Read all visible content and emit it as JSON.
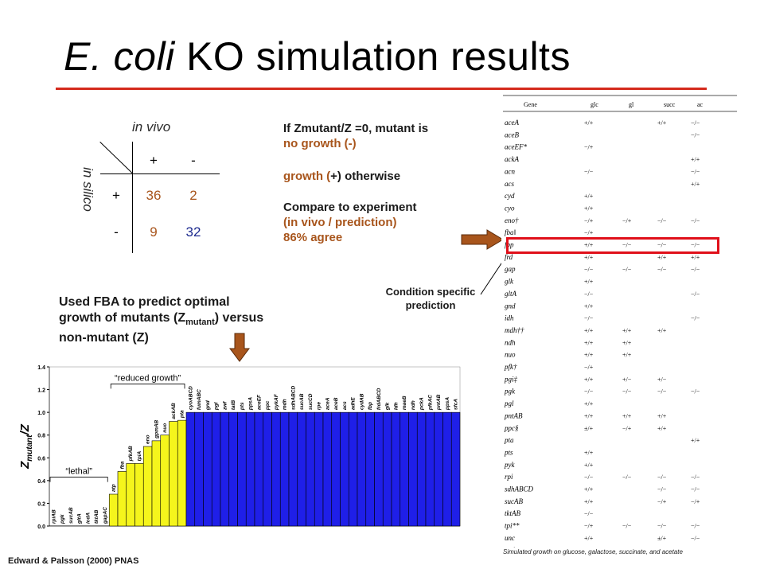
{
  "slide": {
    "title_italic": "E. coli",
    "title_rest": " KO simulation results",
    "citation": "Edward & Palsson (2000) PNAS"
  },
  "matrix": {
    "col_header": "in vivo",
    "row_header": "in silico",
    "col_labels": [
      "+",
      "-"
    ],
    "row_labels": [
      "+",
      "-"
    ],
    "cells": [
      [
        "36",
        "2"
      ],
      [
        "9",
        "32"
      ]
    ]
  },
  "rules": {
    "line1": "If Zmutant/Z =0, mutant is",
    "line2": "no growth (-)",
    "line3_a": "growth (",
    "line3_b": "+",
    "line3_c": ") otherwise",
    "compare_1": "Compare to experiment",
    "compare_2": "(in vivo / prediction)",
    "compare_3": "86% agree"
  },
  "fba": {
    "line1": "Used FBA to predict optimal",
    "line2_a": "growth of mutants (Z",
    "line2_sub": "mutant",
    "line2_b": ") versus",
    "line3": "non-mutant (Z)"
  },
  "condition": {
    "line1": "Condition specific",
    "line2": "prediction"
  },
  "gene_table": {
    "headers": [
      "Gene",
      "glc",
      "gl",
      "succ",
      "ac"
    ],
    "caption": "Simulated growth on glucose, galactose, succinate, and acetate",
    "rows": [
      {
        "gene": "aceA",
        "v": [
          "+/+",
          "",
          "+/+",
          "−/−"
        ]
      },
      {
        "gene": "aceB",
        "v": [
          "",
          "",
          "",
          "−/−"
        ]
      },
      {
        "gene": "aceEF*",
        "v": [
          "−/+",
          "",
          "",
          ""
        ]
      },
      {
        "gene": "ackA",
        "v": [
          "",
          "",
          "",
          "+/+"
        ]
      },
      {
        "gene": "acn",
        "v": [
          "−/−",
          "",
          "",
          "−/−"
        ]
      },
      {
        "gene": "acs",
        "v": [
          "",
          "",
          "",
          "+/+"
        ]
      },
      {
        "gene": "cyd",
        "v": [
          "+/+",
          "",
          "",
          ""
        ]
      },
      {
        "gene": "cyo",
        "v": [
          "+/+",
          "",
          "",
          ""
        ]
      },
      {
        "gene": "eno†",
        "v": [
          "−/+",
          "−/+",
          "−/−",
          "−/−"
        ]
      },
      {
        "gene": "fba‖",
        "v": [
          "−/+",
          "",
          "",
          ""
        ]
      },
      {
        "gene": "fbp",
        "v": [
          "+/+",
          "−/−",
          "−/−",
          "−/−"
        ]
      },
      {
        "gene": "frd",
        "v": [
          "+/+",
          "",
          "+/+",
          "+/+"
        ]
      },
      {
        "gene": "gap",
        "v": [
          "−/−",
          "−/−",
          "−/−",
          "−/−"
        ]
      },
      {
        "gene": "glk",
        "v": [
          "+/+",
          "",
          "",
          ""
        ]
      },
      {
        "gene": "gltA",
        "v": [
          "−/−",
          "",
          "",
          "−/−"
        ]
      },
      {
        "gene": "gnd",
        "v": [
          "+/+",
          "",
          "",
          ""
        ]
      },
      {
        "gene": "idh",
        "v": [
          "−/−",
          "",
          "",
          "−/−"
        ]
      },
      {
        "gene": "mdh††",
        "v": [
          "+/+",
          "+/+",
          "+/+",
          ""
        ]
      },
      {
        "gene": "ndh",
        "v": [
          "+/+",
          "+/+",
          "",
          ""
        ]
      },
      {
        "gene": "nuo",
        "v": [
          "+/+",
          "+/+",
          "",
          ""
        ]
      },
      {
        "gene": "pfk†",
        "v": [
          "−/+",
          "",
          "",
          ""
        ]
      },
      {
        "gene": "pgi‡",
        "v": [
          "+/+",
          "+/−",
          "+/−",
          ""
        ]
      },
      {
        "gene": "pgk",
        "v": [
          "−/−",
          "−/−",
          "−/−",
          "−/−"
        ]
      },
      {
        "gene": "pgl",
        "v": [
          "+/+",
          "",
          "",
          ""
        ]
      },
      {
        "gene": "pntAB",
        "v": [
          "+/+",
          "+/+",
          "+/+",
          ""
        ]
      },
      {
        "gene": "ppc§",
        "v": [
          "±/+",
          "−/+",
          "+/+",
          ""
        ]
      },
      {
        "gene": "pta",
        "v": [
          "",
          "",
          "",
          "+/+"
        ]
      },
      {
        "gene": "pts",
        "v": [
          "+/+",
          "",
          "",
          ""
        ]
      },
      {
        "gene": "pyk",
        "v": [
          "+/+",
          "",
          "",
          ""
        ]
      },
      {
        "gene": "rpi",
        "v": [
          "−/−",
          "−/−",
          "−/−",
          "−/−"
        ]
      },
      {
        "gene": "sdhABCD",
        "v": [
          "+/+",
          "",
          "−/−",
          "−/−"
        ]
      },
      {
        "gene": "sucAB",
        "v": [
          "+/+",
          "",
          "−/+",
          "−/+"
        ]
      },
      {
        "gene": "tktAB",
        "v": [
          "−/−",
          "",
          "",
          ""
        ]
      },
      {
        "gene": "tpi**",
        "v": [
          "−/+",
          "−/−",
          "−/−",
          "−/−"
        ]
      },
      {
        "gene": "unc",
        "v": [
          "+/+",
          "",
          "±/+",
          "−/−"
        ]
      },
      {
        "gene": "zwf",
        "v": [
          "+/+",
          "+/+",
          "+/+",
          ""
        ]
      }
    ]
  },
  "chart_data": {
    "type": "bar",
    "ylabel_main": "Z",
    "ylabel_sub": "mutant",
    "ylabel_tail": "/Z",
    "ylim": [
      0,
      1.4
    ],
    "yticks": [
      "0.0",
      "0.2",
      "0.4",
      "0.6",
      "0.8",
      "1.0",
      "1.2",
      "1.4"
    ],
    "annotation_reduced": "“reduced growth”",
    "annotation_lethal": "“lethal”",
    "colors": {
      "lethal": "#ffffff",
      "reduced": "#f5f51c",
      "normal": "#1f1fe8"
    },
    "categories": [
      "rpiAB",
      "pgk",
      "sucAB",
      "gltA",
      "icdA",
      "tktAB",
      "gapAC",
      "atp",
      "fba",
      "pfkAB",
      "tpiA",
      "eno",
      "gpmAB",
      "nuo",
      "ackAB",
      "pta",
      "cyoABCD",
      "fumABC",
      "gnd",
      "pgl",
      "zwf",
      "talB",
      "pts",
      "ppsA",
      "aceEF",
      "ppc",
      "pykAF",
      "mdh",
      "sdhABCD",
      "sucAB",
      "sucCD",
      "rpe",
      "aceA",
      "aceB",
      "acs",
      "adhE",
      "cydAB",
      "fbp",
      "frdABCD",
      "glk",
      "ldh",
      "maeB",
      "ndh",
      "pckA",
      "pfkAC",
      "pntAB",
      "ppsA",
      "sfcA"
    ],
    "values": [
      0,
      0,
      0,
      0,
      0,
      0,
      0,
      0.28,
      0.48,
      0.55,
      0.55,
      0.7,
      0.75,
      0.8,
      0.92,
      0.93,
      1.0,
      1.0,
      1.0,
      1.0,
      1.0,
      1.0,
      1.0,
      1.0,
      1.0,
      1.0,
      1.0,
      1.0,
      1.0,
      1.0,
      1.0,
      1.0,
      1.0,
      1.0,
      1.0,
      1.0,
      1.0,
      1.0,
      1.0,
      1.0,
      1.0,
      1.0,
      1.0,
      1.0,
      1.0,
      1.0,
      1.0,
      1.0
    ]
  }
}
